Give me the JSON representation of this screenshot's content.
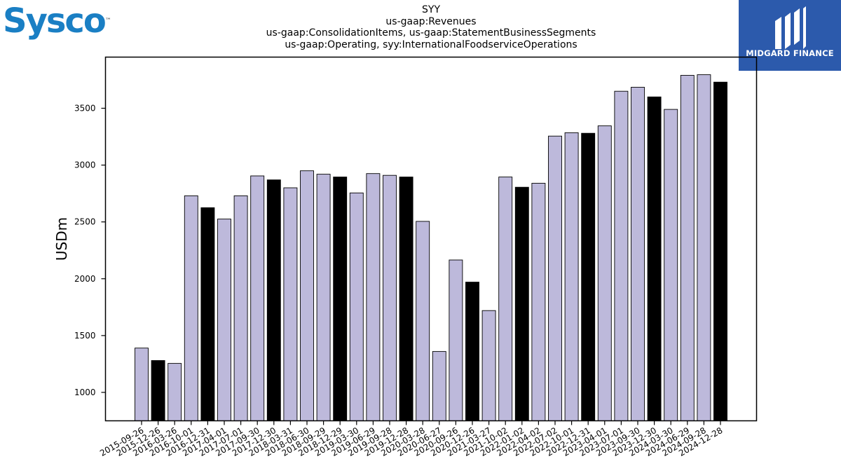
{
  "branding": {
    "company_logo_text": "Sysco",
    "company_logo_tm": "™",
    "sponsor_logo_text": "MIDGARD FINANCE",
    "colors": {
      "sysco_blue": "#1a7fc4",
      "midgard_bg": "#2c5aac"
    }
  },
  "chart_data": {
    "type": "bar",
    "title_lines": [
      "SYY",
      "us-gaap:Revenues",
      "us-gaap:ConsolidationItems, us-gaap:StatementBusinessSegments",
      "us-gaap:Operating, syy:InternationalFoodserviceOperations"
    ],
    "xlabel": "",
    "ylabel": "USDm",
    "ylim": [
      750,
      3950
    ],
    "yticks": [
      1000,
      1500,
      2000,
      2500,
      3000,
      3500
    ],
    "grid": false,
    "bar_colors": {
      "regular": "#bdb9db",
      "highlight": "#000000"
    },
    "categories": [
      "2015-09-26",
      "2015-12-26",
      "2016-03-26",
      "2016-10-01",
      "2016-12-31",
      "2017-04-01",
      "2017-07-01",
      "2017-09-30",
      "2017-12-30",
      "2018-03-31",
      "2018-06-30",
      "2018-09-29",
      "2018-12-29",
      "2019-03-30",
      "2019-06-29",
      "2019-09-28",
      "2019-12-28",
      "2020-03-28",
      "2020-06-27",
      "2020-09-26",
      "2020-12-26",
      "2021-03-27",
      "2021-10-02",
      "2022-01-02",
      "2022-04-02",
      "2022-07-02",
      "2022-10-01",
      "2022-12-31",
      "2023-04-01",
      "2023-07-01",
      "2023-09-30",
      "2023-12-30",
      "2024-03-30",
      "2024-06-29",
      "2024-09-28",
      "2024-12-28"
    ],
    "values": [
      1390,
      1280,
      1255,
      2730,
      2625,
      2525,
      2730,
      2905,
      2870,
      2800,
      2950,
      2920,
      2895,
      2755,
      2925,
      2910,
      2895,
      2505,
      1360,
      2165,
      1970,
      1720,
      2895,
      2805,
      2840,
      3255,
      3285,
      3280,
      3345,
      3650,
      3685,
      3600,
      3490,
      3790,
      3795,
      3730
    ],
    "highlight": [
      false,
      true,
      false,
      false,
      true,
      false,
      false,
      false,
      true,
      false,
      false,
      false,
      true,
      false,
      false,
      false,
      true,
      false,
      false,
      false,
      true,
      false,
      false,
      true,
      false,
      false,
      false,
      true,
      false,
      false,
      false,
      true,
      false,
      false,
      false,
      true
    ]
  }
}
